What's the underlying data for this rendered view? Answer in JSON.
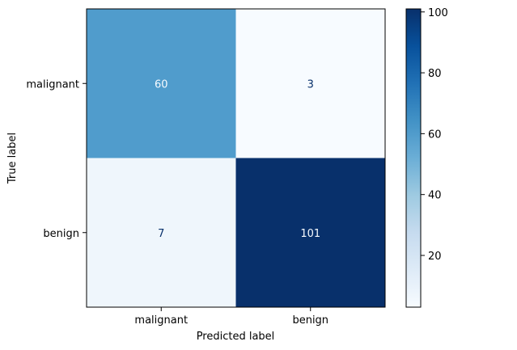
{
  "chart_data": {
    "type": "heatmap",
    "title": "",
    "xlabel": "Predicted label",
    "ylabel": "True label",
    "x_categories": [
      "malignant",
      "benign"
    ],
    "y_categories": [
      "malignant",
      "benign"
    ],
    "values": [
      [
        60,
        3
      ],
      [
        7,
        101
      ]
    ],
    "colormap": "Blues",
    "colorbar": {
      "min": 3,
      "max": 101,
      "ticks": [
        20,
        40,
        60,
        80,
        100
      ]
    },
    "grid": false,
    "colors": {
      "cell_60": "#58a1cf",
      "cell_3": "#f7fbff",
      "cell_7": "#eef5fc",
      "cell_101": "#08306b",
      "text_dark": "#08306b",
      "text_light": "#f7fbff"
    }
  }
}
